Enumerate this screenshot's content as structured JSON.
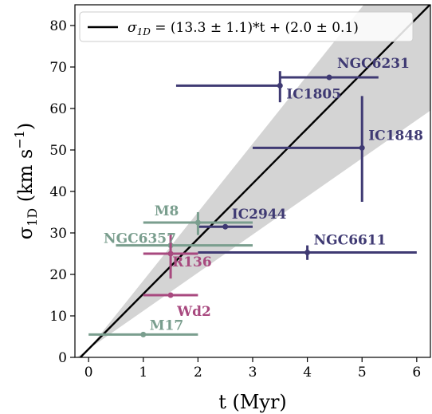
{
  "chart_data": {
    "type": "scatter",
    "xlabel": "t (Myr)",
    "ylabel": {
      "main": "σ",
      "main_sub": "1D",
      "unit_open": " (km s",
      "unit_sup": "−1",
      "unit_close": ")"
    },
    "xlim": [
      -0.25,
      6.25
    ],
    "ylim": [
      0,
      85
    ],
    "xticks": [
      0,
      1,
      2,
      3,
      4,
      5,
      6
    ],
    "yticks": [
      0,
      10,
      20,
      30,
      40,
      50,
      60,
      70,
      80
    ],
    "grid": false,
    "legend": {
      "placement": "top",
      "prefix": "σ",
      "sub": "1D",
      "rest": " = (13.3 ± 1.1)*t + (2.0 ± 0.1)"
    },
    "fit": {
      "slope": 13.3,
      "slope_err": 1.1,
      "intercept": 2.0,
      "intercept_err": 0.1,
      "color": "#000000"
    },
    "band": {
      "slope_low": 9.2,
      "slope_high": 16.5,
      "color": "#d4d4d4"
    },
    "colors": {
      "purple": "#3f3a73",
      "green": "#7a9e8e",
      "magenta": "#a8497f"
    },
    "points": [
      {
        "name": "NGC6231",
        "x": 4.4,
        "y": 67.5,
        "xerr": [
          3.5,
          5.3
        ],
        "yerr": [
          67.0,
          68.0
        ],
        "color": "purple"
      },
      {
        "name": "IC1805",
        "x": 3.5,
        "y": 65.5,
        "xerr": [
          1.6,
          3.5
        ],
        "yerr": [
          61.5,
          69.0
        ],
        "color": "purple"
      },
      {
        "name": "IC1848",
        "x": 5.0,
        "y": 50.5,
        "xerr": [
          3.0,
          5.0
        ],
        "yerr": [
          37.5,
          63.0
        ],
        "color": "purple"
      },
      {
        "name": "IC2944",
        "x": 2.5,
        "y": 31.5,
        "xerr": [
          2.0,
          3.0
        ],
        "yerr": [
          31.0,
          32.0
        ],
        "color": "purple"
      },
      {
        "name": "NGC6611",
        "x": 4.0,
        "y": 25.3,
        "xerr": [
          2.0,
          6.0
        ],
        "yerr": [
          23.5,
          27.0
        ],
        "color": "purple"
      },
      {
        "name": "M8",
        "x": 2.0,
        "y": 32.5,
        "xerr": [
          1.0,
          3.0
        ],
        "yerr": [
          29.5,
          35.0
        ],
        "color": "green"
      },
      {
        "name": "NGC6357",
        "x": 1.5,
        "y": 27.0,
        "xerr": [
          0.5,
          3.0
        ],
        "yerr": [
          27.0,
          27.0
        ],
        "color": "green"
      },
      {
        "name": "M17",
        "x": 1.0,
        "y": 5.5,
        "xerr": [
          0.0,
          2.0
        ],
        "yerr": [
          5.5,
          5.5
        ],
        "color": "green"
      },
      {
        "name": "R136",
        "x": 1.5,
        "y": 25.0,
        "xerr": [
          1.0,
          2.0
        ],
        "yerr": [
          19.0,
          30.0
        ],
        "color": "magenta"
      },
      {
        "name": "Wd2",
        "x": 1.5,
        "y": 15.0,
        "xerr": [
          1.0,
          2.0
        ],
        "yerr": [
          15.0,
          15.0
        ],
        "color": "magenta"
      }
    ]
  }
}
